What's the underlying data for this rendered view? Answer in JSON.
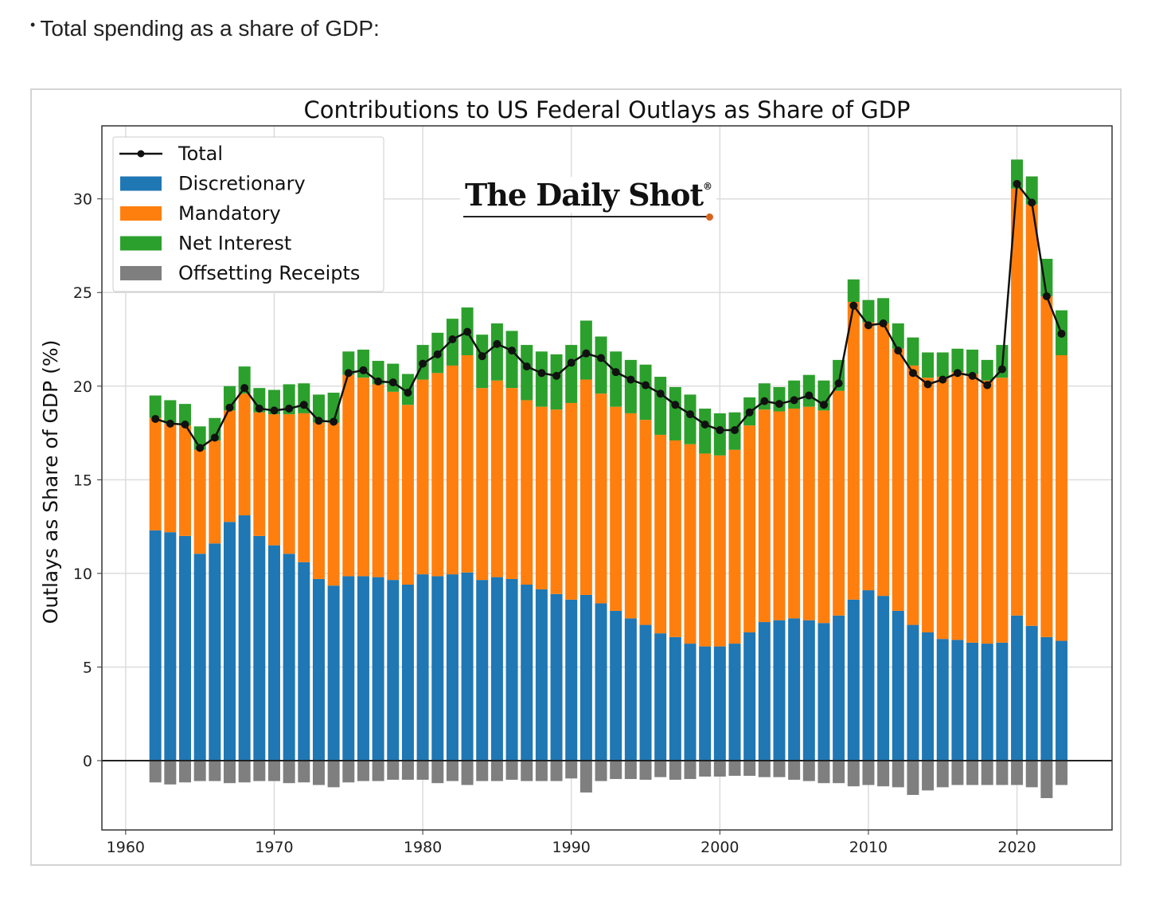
{
  "intro": {
    "bullet": "•",
    "text": "Total spending as a share of GDP:"
  },
  "logo": {
    "text": "The Daily Shot",
    "mark": "®"
  },
  "chart_data": {
    "type": "bar",
    "stacked": true,
    "title": "Contributions to US Federal Outlays as Share of GDP",
    "xlabel": "",
    "ylabel": "Outlays as Share of GDP (%)",
    "xlim": [
      1958.4,
      2026.4
    ],
    "ylim": [
      -3.7,
      33.9
    ],
    "xticks": [
      "1960",
      "1970",
      "1980",
      "1990",
      "2000",
      "2010",
      "2020"
    ],
    "yticks": [
      "0",
      "5",
      "10",
      "15",
      "20",
      "25",
      "30"
    ],
    "grid": true,
    "legend_position": "top-left",
    "colors": {
      "Total": "#000000",
      "Discretionary": "#1f77b4",
      "Mandatory": "#ff7f0e",
      "Net Interest": "#2ca02c",
      "Offsetting Receipts": "#7f7f7f"
    },
    "years": [
      1962,
      1963,
      1964,
      1965,
      1966,
      1967,
      1968,
      1969,
      1970,
      1971,
      1972,
      1973,
      1974,
      1975,
      1976,
      1977,
      1978,
      1979,
      1980,
      1981,
      1982,
      1983,
      1984,
      1985,
      1986,
      1987,
      1988,
      1989,
      1990,
      1991,
      1992,
      1993,
      1994,
      1995,
      1996,
      1997,
      1998,
      1999,
      2000,
      2001,
      2002,
      2003,
      2004,
      2005,
      2006,
      2007,
      2008,
      2009,
      2010,
      2011,
      2012,
      2013,
      2014,
      2015,
      2016,
      2017,
      2018,
      2019,
      2020,
      2021,
      2022,
      2023
    ],
    "series": [
      {
        "name": "Discretionary",
        "values": [
          12.3,
          12.2,
          12.0,
          11.05,
          11.6,
          12.75,
          13.1,
          12.0,
          11.5,
          11.05,
          10.6,
          9.7,
          9.35,
          9.85,
          9.85,
          9.8,
          9.65,
          9.4,
          9.95,
          9.85,
          9.95,
          10.05,
          9.65,
          9.8,
          9.7,
          9.4,
          9.15,
          8.9,
          8.6,
          8.85,
          8.4,
          8.0,
          7.6,
          7.25,
          6.8,
          6.6,
          6.25,
          6.1,
          6.1,
          6.25,
          6.85,
          7.4,
          7.5,
          7.6,
          7.5,
          7.35,
          7.75,
          8.6,
          9.1,
          8.8,
          8.0,
          7.25,
          6.85,
          6.5,
          6.45,
          6.3,
          6.25,
          6.3,
          7.75,
          7.2,
          6.6,
          6.4
        ]
      },
      {
        "name": "Mandatory",
        "values": [
          6.0,
          5.8,
          5.9,
          5.55,
          5.5,
          5.95,
          6.5,
          6.6,
          7.0,
          7.45,
          7.95,
          8.35,
          8.7,
          10.75,
          10.6,
          10.3,
          10.05,
          9.6,
          10.4,
          10.85,
          11.15,
          11.6,
          10.25,
          10.5,
          10.2,
          9.85,
          9.75,
          9.85,
          10.5,
          11.5,
          11.2,
          10.9,
          10.95,
          10.95,
          10.6,
          10.5,
          10.65,
          10.3,
          10.2,
          10.35,
          11.05,
          11.35,
          11.15,
          11.2,
          11.4,
          11.35,
          12.0,
          15.9,
          14.3,
          14.55,
          14.0,
          13.85,
          13.6,
          14.0,
          14.3,
          14.35,
          14.05,
          14.15,
          22.8,
          22.5,
          18.2,
          15.25
        ]
      },
      {
        "name": "Net Interest",
        "values": [
          1.2,
          1.25,
          1.15,
          1.25,
          1.2,
          1.3,
          1.45,
          1.3,
          1.3,
          1.6,
          1.6,
          1.5,
          1.6,
          1.25,
          1.5,
          1.25,
          1.5,
          1.65,
          1.85,
          2.15,
          2.5,
          2.55,
          2.85,
          3.05,
          3.05,
          2.95,
          2.95,
          2.95,
          3.1,
          3.15,
          3.05,
          2.95,
          2.85,
          2.95,
          3.1,
          2.85,
          2.65,
          2.4,
          2.25,
          2.0,
          1.5,
          1.4,
          1.3,
          1.5,
          1.7,
          1.6,
          1.65,
          1.2,
          1.2,
          1.35,
          1.35,
          1.5,
          1.35,
          1.3,
          1.25,
          1.3,
          1.1,
          1.75,
          1.55,
          1.5,
          2.0,
          2.4
        ]
      },
      {
        "name": "Offsetting Receipts",
        "values": [
          -1.16,
          -1.27,
          -1.16,
          -1.09,
          -1.09,
          -1.2,
          -1.16,
          -1.09,
          -1.09,
          -1.2,
          -1.16,
          -1.3,
          -1.42,
          -1.16,
          -1.09,
          -1.09,
          -1.02,
          -1.02,
          -1.02,
          -1.2,
          -1.09,
          -1.3,
          -1.09,
          -1.09,
          -1.02,
          -1.09,
          -1.09,
          -1.09,
          -0.95,
          -1.7,
          -1.09,
          -0.98,
          -0.98,
          -1.02,
          -0.88,
          -1.02,
          -0.98,
          -0.85,
          -0.85,
          -0.81,
          -0.81,
          -0.88,
          -0.88,
          -1.02,
          -1.09,
          -1.2,
          -1.2,
          -1.37,
          -1.3,
          -1.37,
          -1.42,
          -1.83,
          -1.59,
          -1.42,
          -1.3,
          -1.3,
          -1.3,
          -1.3,
          -1.3,
          -1.42,
          -2.0,
          -1.3
        ]
      },
      {
        "name": "Total",
        "values": [
          18.25,
          18.0,
          17.95,
          16.7,
          17.25,
          18.85,
          19.9,
          18.8,
          18.7,
          18.8,
          19.0,
          18.15,
          18.1,
          20.7,
          20.85,
          20.25,
          20.2,
          19.65,
          21.2,
          21.7,
          22.5,
          22.9,
          21.6,
          22.25,
          21.9,
          21.05,
          20.7,
          20.55,
          21.25,
          21.75,
          21.5,
          20.75,
          20.35,
          20.05,
          19.6,
          19.0,
          18.5,
          17.95,
          17.65,
          17.65,
          18.6,
          19.2,
          19.05,
          19.25,
          19.5,
          19.0,
          20.15,
          24.3,
          23.25,
          23.35,
          21.9,
          20.7,
          20.1,
          20.35,
          20.7,
          20.55,
          20.05,
          20.9,
          30.8,
          29.8,
          24.8,
          22.8
        ]
      }
    ],
    "legend": [
      "Total",
      "Discretionary",
      "Mandatory",
      "Net Interest",
      "Offsetting Receipts"
    ]
  }
}
